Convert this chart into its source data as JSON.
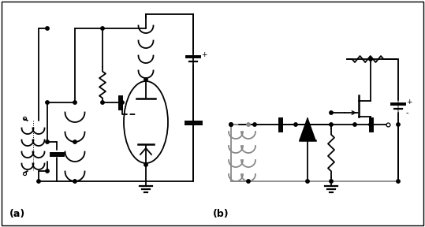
{
  "label_a": "(a)",
  "label_b": "(b)",
  "bg_color": "#ffffff",
  "lw": 1.3,
  "gray": "#888888",
  "black": "#000000",
  "figsize": [
    5.39,
    2.88
  ],
  "dpi": 100
}
